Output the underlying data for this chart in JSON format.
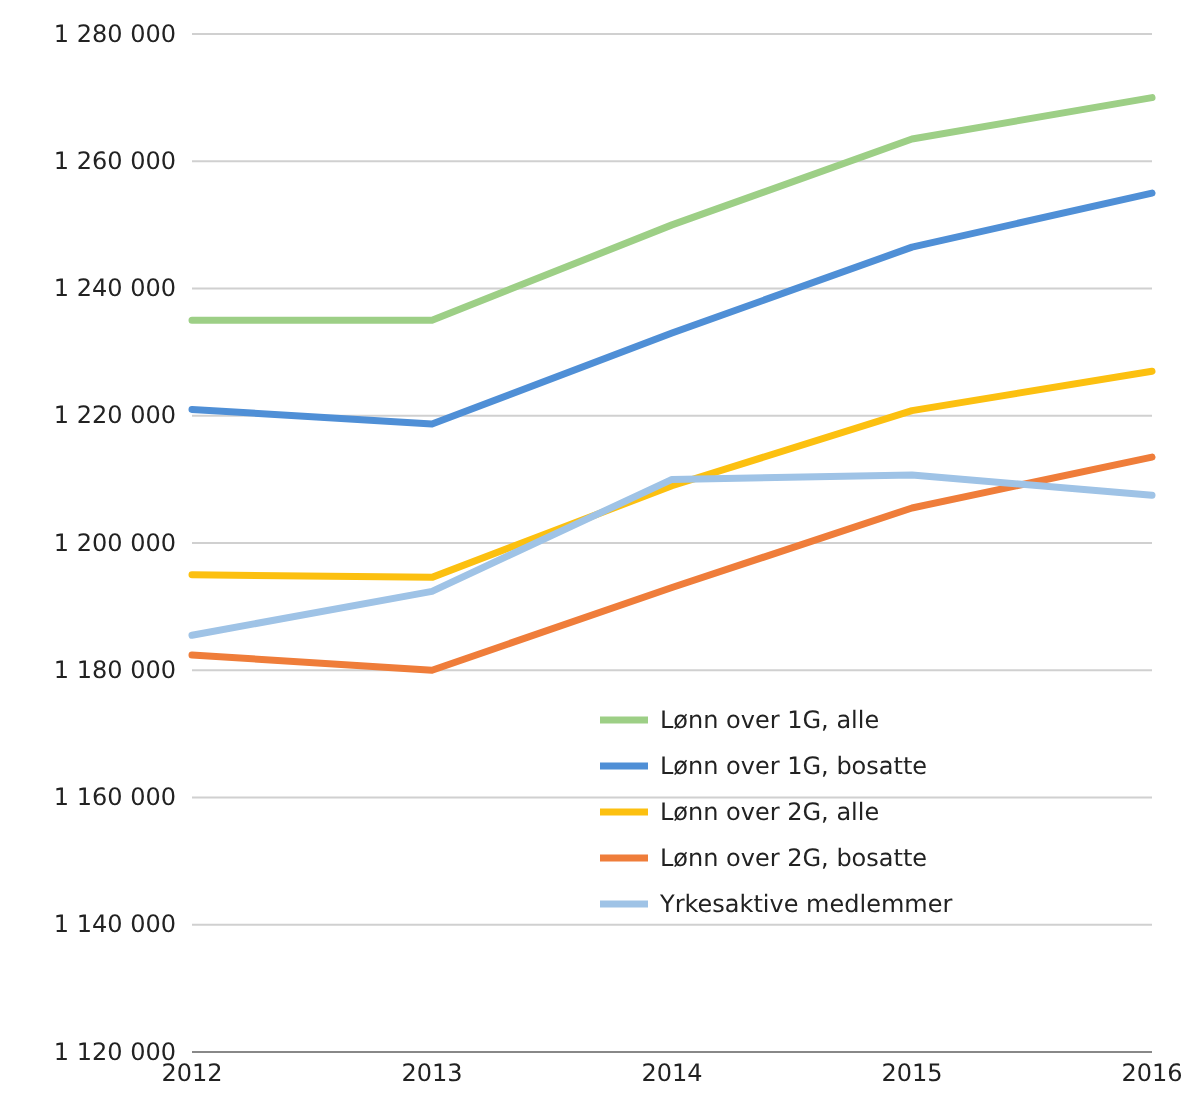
{
  "chart_data": {
    "type": "line",
    "x": [
      2012,
      2013,
      2014,
      2015,
      2016
    ],
    "xlim": [
      2012,
      2016
    ],
    "xticks": [
      2012,
      2013,
      2014,
      2015,
      2016
    ],
    "ylim": [
      1120000,
      1280000
    ],
    "yticks": [
      {
        "value": 1120000,
        "label": "1 120 000"
      },
      {
        "value": 1140000,
        "label": "1 140 000"
      },
      {
        "value": 1160000,
        "label": "1 160 000"
      },
      {
        "value": 1180000,
        "label": "1 180 000"
      },
      {
        "value": 1200000,
        "label": "1 200 000"
      },
      {
        "value": 1220000,
        "label": "1 220 000"
      },
      {
        "value": 1240000,
        "label": "1 240 000"
      },
      {
        "value": 1260000,
        "label": "1 260 000"
      },
      {
        "value": 1280000,
        "label": "1 280 000"
      }
    ],
    "grid": "y",
    "legend": "bottom right",
    "marker": "none",
    "line_style": "solid",
    "series": [
      {
        "name": "Lønn over 1G, alle",
        "color": "#9dcf86",
        "values": [
          1235000,
          1235000,
          1250000,
          1263500,
          1270000
        ]
      },
      {
        "name": "Lønn over 1G, bosatte",
        "color": "#4f8fd6",
        "values": [
          1221000,
          1218700,
          1233000,
          1246500,
          1255000
        ]
      },
      {
        "name": "Lønn over 2G, alle",
        "color": "#fcc010",
        "values": [
          1195000,
          1194600,
          1209000,
          1220800,
          1227000
        ]
      },
      {
        "name": "Lønn over 2G, bosatte",
        "color": "#ef7d3a",
        "values": [
          1182400,
          1180000,
          1193000,
          1205500,
          1213500
        ]
      },
      {
        "name": "Yrkesaktive medlemmer",
        "color": "#9fc3e6",
        "values": [
          1185500,
          1192400,
          1210000,
          1210700,
          1207500
        ]
      }
    ]
  }
}
